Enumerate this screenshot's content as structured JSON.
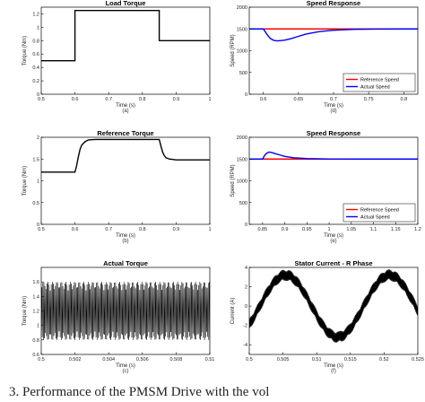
{
  "caption": "3. Performance of the PMSM Drive with the vol",
  "chart_data": [
    {
      "type": "line",
      "title": "Load Torque",
      "xlabel": "Time (s)",
      "ylabel": "Torque (Nm)",
      "sublabel": "(a)",
      "xlim": [
        0.5,
        1
      ],
      "ylim": [
        0,
        1.3
      ],
      "xticks": [
        0.5,
        0.6,
        0.7,
        0.8,
        0.9,
        1
      ],
      "yticks": [
        0,
        0.2,
        0.4,
        0.6,
        0.8,
        1,
        1.2
      ],
      "grid": false,
      "series": [
        {
          "color": "#000000",
          "x": [
            0.5,
            0.6,
            0.6,
            0.85,
            0.85,
            1
          ],
          "y": [
            0.5,
            0.5,
            1.25,
            1.25,
            0.8,
            0.8
          ]
        }
      ]
    },
    {
      "type": "line",
      "title": "Speed Response",
      "xlabel": "Time (s)",
      "ylabel": "Speed (RPM)",
      "sublabel": "(d)",
      "xlim": [
        0.58,
        0.82
      ],
      "ylim": [
        0,
        2000
      ],
      "xticks": [
        0.6,
        0.65,
        0.7,
        0.75,
        0.8
      ],
      "yticks": [
        0,
        500,
        1000,
        1500,
        2000
      ],
      "grid": false,
      "legend": "bottom-right",
      "series": [
        {
          "name": "Reference Speed",
          "color": "#ff0000",
          "x": [
            0.58,
            0.82
          ],
          "y": [
            1500,
            1500
          ]
        },
        {
          "name": "Actual Speed",
          "color": "#0000ff",
          "x": [
            0.58,
            0.6,
            0.605,
            0.61,
            0.615,
            0.62,
            0.63,
            0.64,
            0.65,
            0.66,
            0.68,
            0.7,
            0.73,
            0.76,
            0.8,
            0.82
          ],
          "y": [
            1500,
            1500,
            1380,
            1280,
            1235,
            1225,
            1240,
            1280,
            1330,
            1380,
            1440,
            1470,
            1490,
            1497,
            1500,
            1500
          ]
        }
      ]
    },
    {
      "type": "line",
      "title": "Reference Torque",
      "xlabel": "Time (s)",
      "ylabel": "Torque (Nm)",
      "sublabel": "(b)",
      "xlim": [
        0.5,
        1
      ],
      "ylim": [
        0,
        2
      ],
      "xticks": [
        0.5,
        0.6,
        0.7,
        0.8,
        0.9,
        1
      ],
      "yticks": [
        0,
        0.5,
        1,
        1.5,
        2
      ],
      "grid": false,
      "series": [
        {
          "color": "#000000",
          "x": [
            0.5,
            0.6,
            0.605,
            0.61,
            0.615,
            0.62,
            0.63,
            0.64,
            0.66,
            0.85,
            0.855,
            0.86,
            0.865,
            0.87,
            0.88,
            0.89,
            0.9,
            1
          ],
          "y": [
            1.2,
            1.2,
            1.35,
            1.55,
            1.72,
            1.82,
            1.9,
            1.94,
            1.95,
            1.95,
            1.8,
            1.66,
            1.58,
            1.53,
            1.5,
            1.49,
            1.48,
            1.48
          ]
        }
      ]
    },
    {
      "type": "line",
      "title": "Speed Response",
      "xlabel": "Time (s)",
      "ylabel": "Speed (RPM)",
      "sublabel": "(e)",
      "xlim": [
        0.82,
        1.2
      ],
      "ylim": [
        0,
        2000
      ],
      "xticks": [
        0.85,
        0.9,
        0.95,
        1,
        1.05,
        1.1,
        1.15,
        1.2
      ],
      "yticks": [
        0,
        500,
        1000,
        1500,
        2000
      ],
      "grid": false,
      "legend": "bottom-right",
      "series": [
        {
          "name": "Reference Speed",
          "color": "#ff0000",
          "x": [
            0.82,
            1.2
          ],
          "y": [
            1500,
            1500
          ]
        },
        {
          "name": "Actual Speed",
          "color": "#0000ff",
          "x": [
            0.82,
            0.85,
            0.855,
            0.86,
            0.865,
            0.87,
            0.88,
            0.89,
            0.9,
            0.92,
            0.95,
            1,
            1.05,
            1.2
          ],
          "y": [
            1500,
            1500,
            1590,
            1640,
            1660,
            1650,
            1620,
            1590,
            1560,
            1530,
            1510,
            1502,
            1500,
            1500
          ]
        }
      ]
    },
    {
      "type": "line",
      "title": "Actual Torque",
      "xlabel": "Time (s)",
      "ylabel": "Torque (Nm)",
      "sublabel": "(c)",
      "xlim": [
        0.5,
        0.51
      ],
      "ylim": [
        0.6,
        1.8
      ],
      "xticks": [
        0.5,
        0.502,
        0.504,
        0.506,
        0.508,
        0.51
      ],
      "yticks": [
        0.6,
        0.8,
        1,
        1.2,
        1.4,
        1.6
      ],
      "grid": false,
      "series": [
        {
          "color": "#000000",
          "mean": 1.2,
          "ripple_amplitude": 0.4
        }
      ]
    },
    {
      "type": "line",
      "title": "Stator Current - R Phase",
      "xlabel": "Time (s)",
      "ylabel": "Current (A)",
      "sublabel": "(f)",
      "xlim": [
        0.5,
        0.525
      ],
      "ylim": [
        -5,
        4
      ],
      "xticks": [
        0.5,
        0.505,
        0.51,
        0.515,
        0.52,
        0.525
      ],
      "yticks": [
        -4,
        -2,
        0,
        2,
        4
      ],
      "grid": false,
      "series": [
        {
          "color": "#000000",
          "amplitude": 3.2,
          "period": 0.0154,
          "peak_times": [
            0.5054,
            0.5208
          ],
          "ripple_amplitude": 0.6
        }
      ]
    }
  ]
}
